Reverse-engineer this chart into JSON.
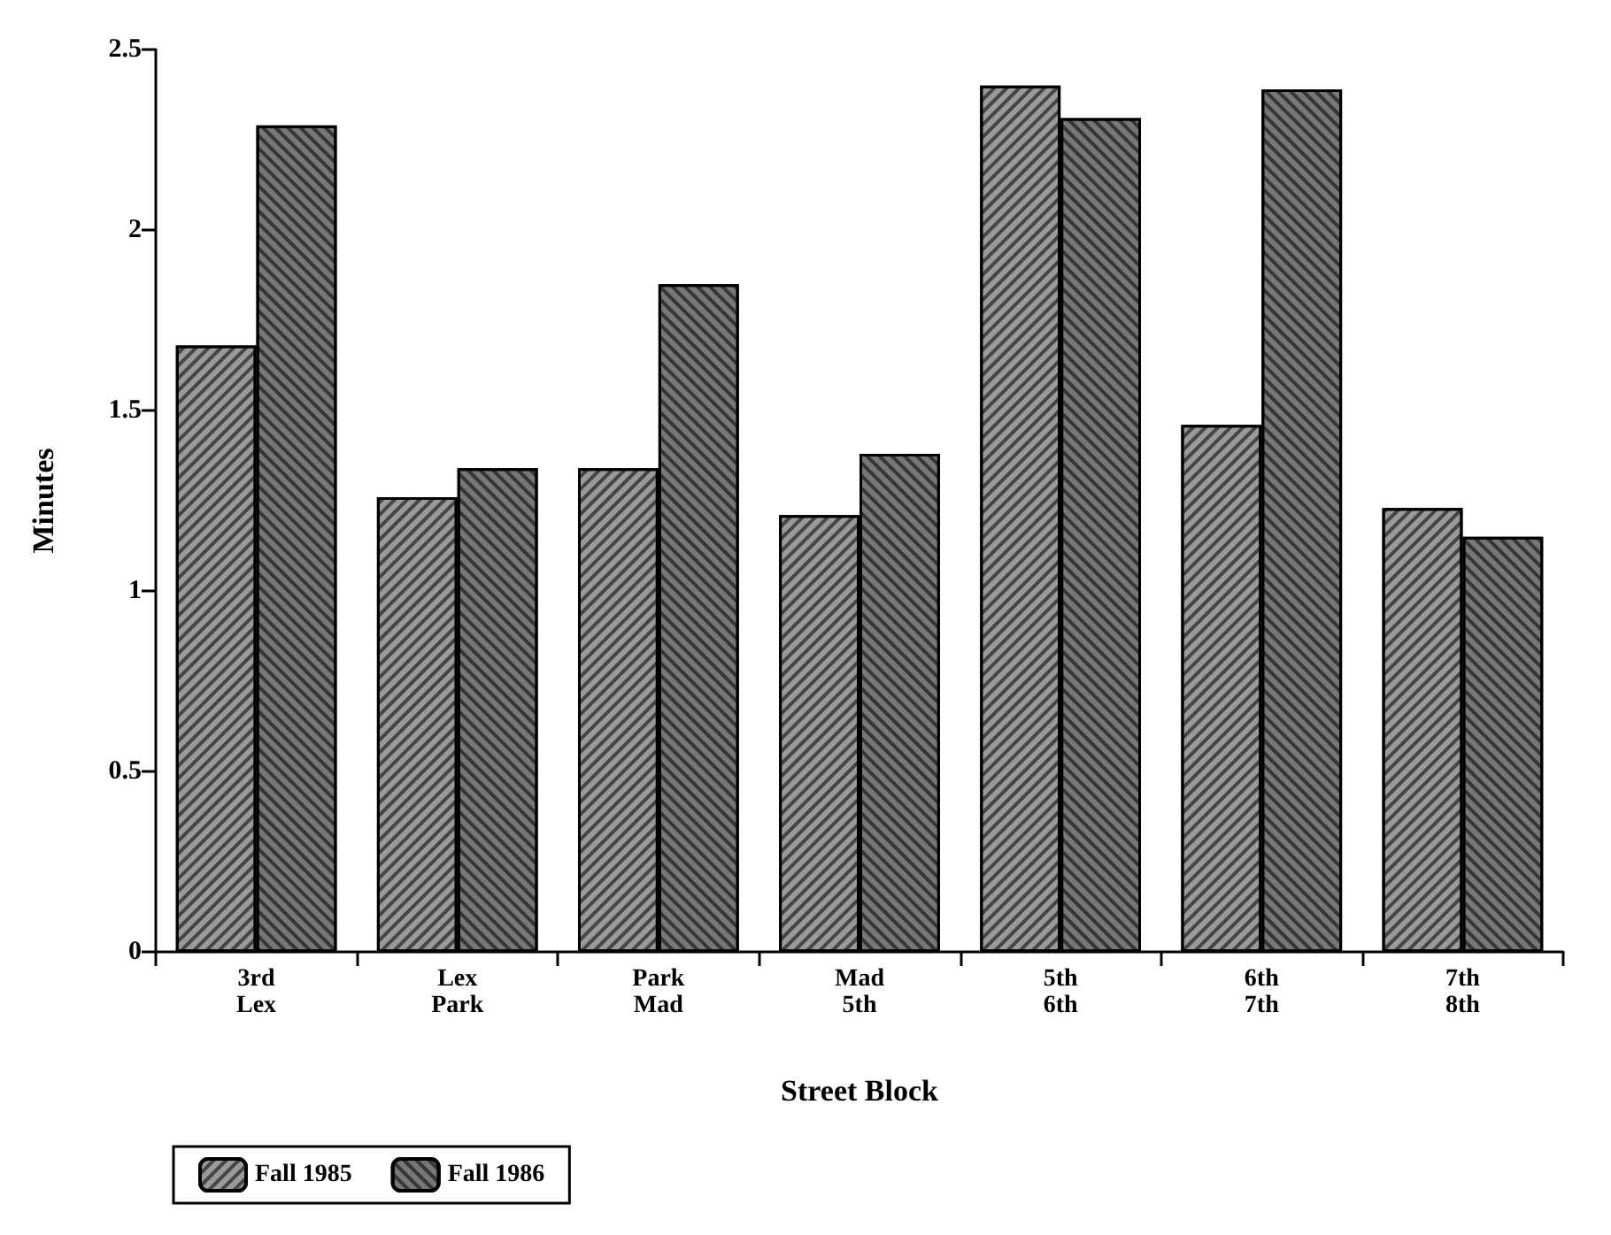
{
  "chart_data": {
    "type": "bar",
    "xlabel": "Street Block",
    "ylabel": "Minutes",
    "categories": [
      "3rd\nLex",
      "Lex\nPark",
      "Park\nMad",
      "Mad\n5th",
      "5th\n6th",
      "6th\n7th",
      "7th\n8th"
    ],
    "series": [
      {
        "name": "Fall 1985",
        "color": "#9a9a9a",
        "values": [
          1.68,
          1.26,
          1.34,
          1.21,
          2.4,
          1.46,
          1.23
        ]
      },
      {
        "name": "Fall 1986",
        "color": "#777777",
        "values": [
          2.29,
          1.34,
          1.85,
          1.38,
          2.31,
          2.39,
          1.15
        ]
      }
    ],
    "ylim": [
      0,
      2.5
    ],
    "yticks": [
      0,
      0.5,
      1,
      1.5,
      2,
      2.5
    ],
    "grid": false,
    "legend": "bottom left"
  }
}
